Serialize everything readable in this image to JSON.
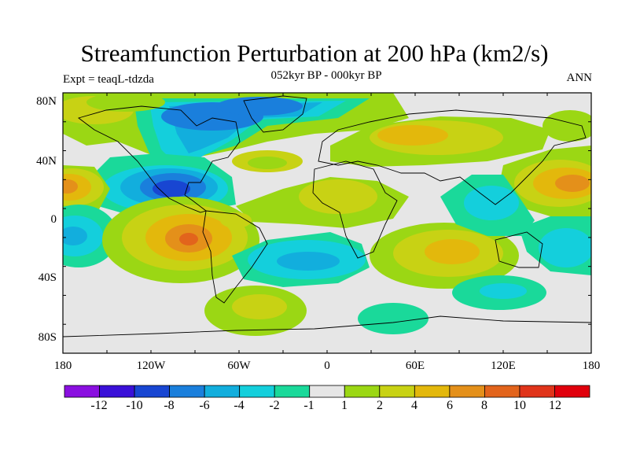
{
  "title": "Streamfunction Perturbation at 200 hPa (km2/s)",
  "subtitle": "052kyr BP - 000kyr BP",
  "expt_label": "Expt = teaqL-tdzda",
  "season": "ANN",
  "lat_labels": [
    "80N",
    "40N",
    "0",
    "40S",
    "80S"
  ],
  "lon_labels": [
    "180",
    "120W",
    "60W",
    "0",
    "60E",
    "120E",
    "180"
  ],
  "colorbar": {
    "labels": [
      "-12",
      "-10",
      "-8",
      "-6",
      "-4",
      "-2",
      "-1",
      "1",
      "2",
      "4",
      "6",
      "8",
      "10",
      "12"
    ],
    "colors": [
      "#8a0fe0",
      "#3a10d8",
      "#1846d2",
      "#1a7fdc",
      "#12aedd",
      "#14cfdc",
      "#1ad99a",
      "#e6e6e6",
      "#9bd714",
      "#c8d214",
      "#e3b80c",
      "#e4901a",
      "#e2641c",
      "#e0341a",
      "#e0000c"
    ]
  },
  "map_data": {
    "field": "200 hPa streamfunction perturbation",
    "units": "km2/s",
    "lon_range": [
      -180,
      180
    ],
    "lat_range": [
      -90,
      90
    ],
    "features": [
      {
        "name": "N Atlantic / Canada low",
        "lon": -70,
        "lat": 60,
        "level": -4
      },
      {
        "name": "Gulf of Mexico low",
        "lon": -100,
        "lat": 23,
        "level": -8
      },
      {
        "name": "Subtropical E Pacific low",
        "lon": -170,
        "lat": -10,
        "level": -3
      },
      {
        "name": "SE Pacific high",
        "lon": -95,
        "lat": -13,
        "level": 8
      },
      {
        "name": "Asia high",
        "lon": 85,
        "lat": 58,
        "level": 4
      },
      {
        "name": "N Pacific high",
        "lon": 175,
        "lat": 25,
        "level": 6
      },
      {
        "name": "Central Pacific high",
        "lon": -180,
        "lat": 25,
        "level": 6
      },
      {
        "name": "N Africa high",
        "lon": 5,
        "lat": 20,
        "level": 4
      },
      {
        "name": "S Indian Ocean high",
        "lon": 80,
        "lat": -18,
        "level": 4
      },
      {
        "name": "S Atlantic low",
        "lon": -10,
        "lat": -28,
        "level": -3
      },
      {
        "name": "Maritime Continent low",
        "lon": 120,
        "lat": 5,
        "level": -2
      },
      {
        "name": "Southern Ocean Pacific low",
        "lon": 135,
        "lat": -47,
        "level": -3
      },
      {
        "name": "South America high",
        "lon": -55,
        "lat": -57,
        "level": 2
      }
    ]
  }
}
